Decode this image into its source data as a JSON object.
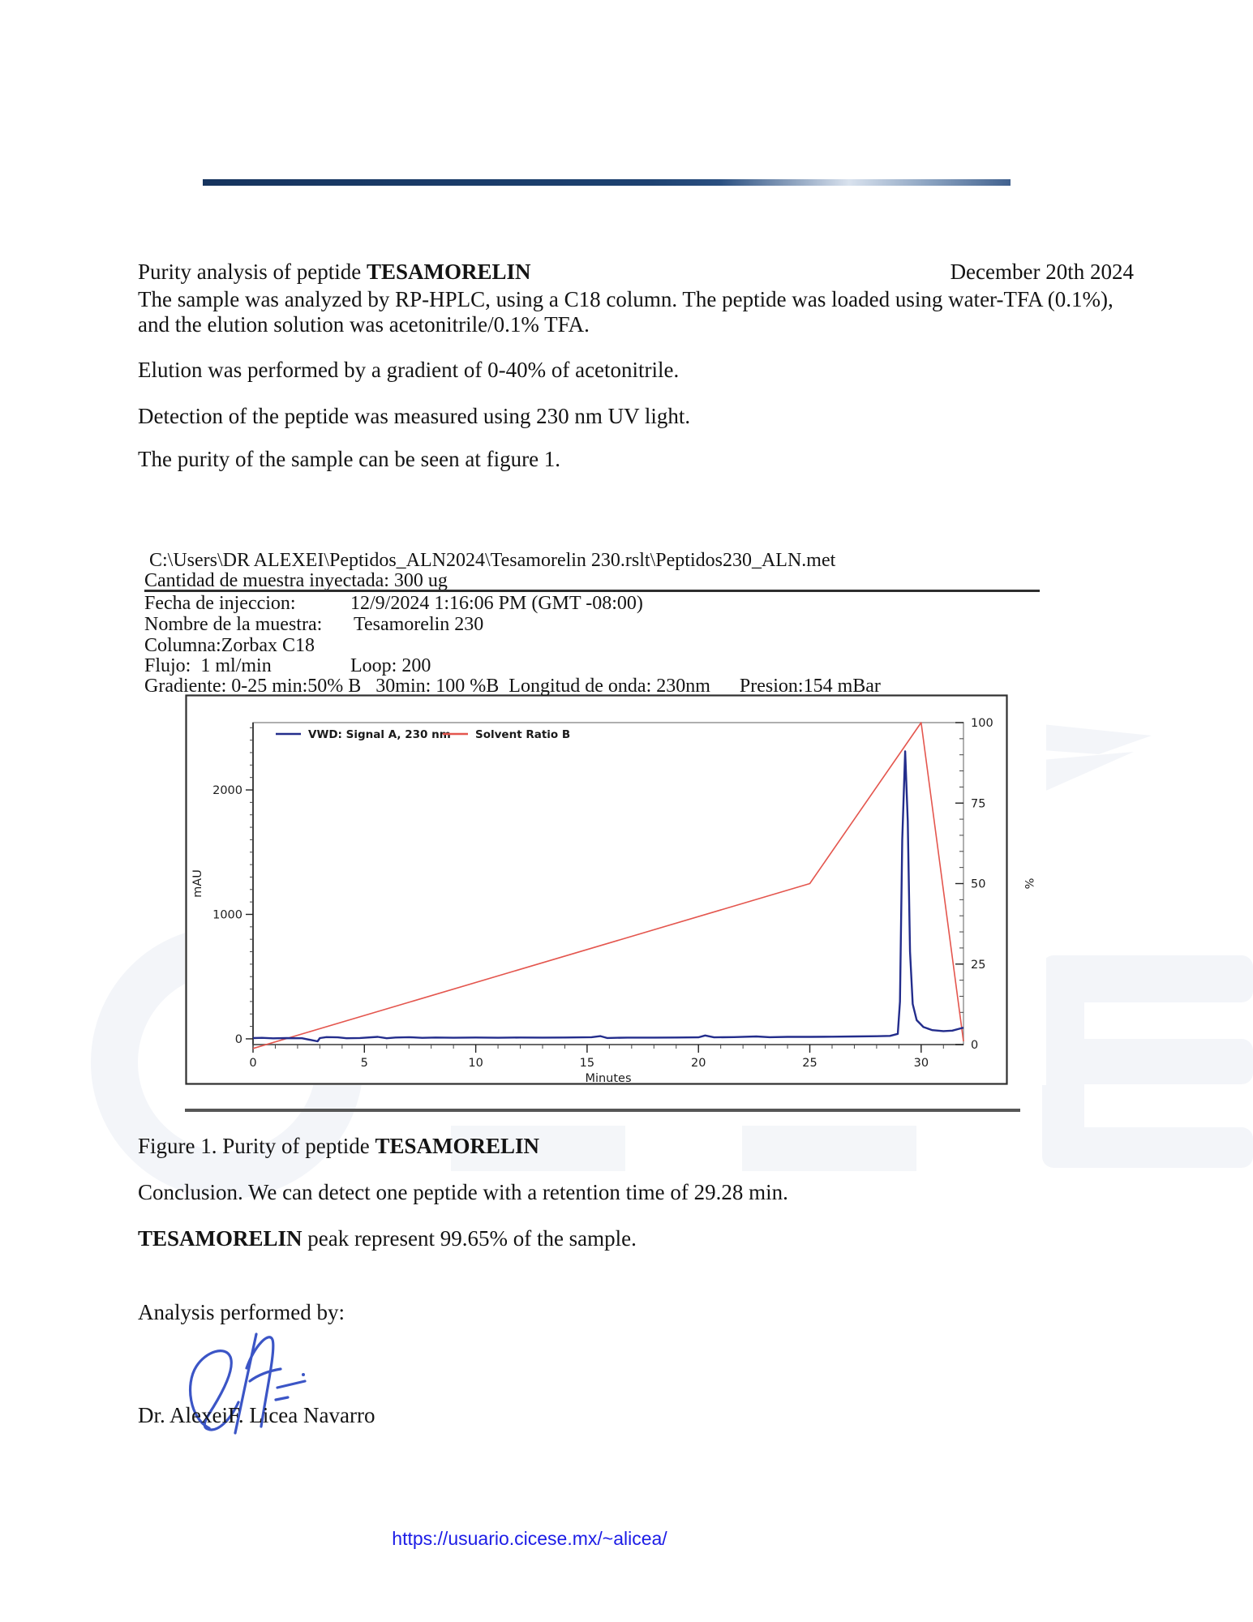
{
  "intro": {
    "title_prefix": "Purity analysis of peptide ",
    "title_peptide": "TESAMORELIN",
    "date": "December 20th 2024",
    "p1a": "The sample was analyzed by RP-HPLC, using a C18 column. The peptide was loaded using water-TFA (0.1%),",
    "p1b": "and the elution solution was acetonitrile/0.1% TFA.",
    "p2": "Elution was performed by a gradient of 0-40% of acetonitrile.",
    "p3": "Detection of the peptide was measured using 230 nm UV light.",
    "p4": "The purity of the sample can be seen at figure 1."
  },
  "meta": {
    "path": "C:\\Users\\DR ALEXEI\\Peptidos_ALN2024\\Tesamorelin 230.rslt\\Peptidos230_ALN.met",
    "cantidad": "Cantidad de muestra inyectada: 300 ug",
    "fecha_label": "Fecha de injeccion:",
    "fecha_value": "12/9/2024 1:16:06 PM (GMT -08:00)",
    "nombre_label": "Nombre de la muestra:",
    "nombre_value": "Tesamorelin 230",
    "columna": "Columna:Zorbax C18",
    "flujo": "Flujo:  1 ml/min",
    "loop": "Loop: 200",
    "gradiente": "Gradiente: 0-25 min:50% B   30min: 100 %B  Longitud de onda: 230nm      Presion:154 mBar"
  },
  "figure": {
    "caption_prefix": "Figure 1. Purity of peptide ",
    "caption_peptide": "TESAMORELIN"
  },
  "conclusion": {
    "line": "Conclusion. We can detect one peptide with a retention time of 29.28 min.",
    "bold": "TESAMORELIN",
    "rest": " peak represent 99.65% of the sample."
  },
  "signoff": {
    "performed_by": "Analysis performed by:",
    "name": "Dr. AlexeiF. Licea Navarro"
  },
  "footer": {
    "link": "https://usuario.cicese.mx/~alicea/"
  },
  "chart_data": {
    "type": "line",
    "title": "",
    "grid": false,
    "legend_position": "top-left-inside",
    "x": {
      "label": "Minutes",
      "min": 0,
      "max": 31.9,
      "major_ticks": [
        0,
        5,
        10,
        15,
        20,
        25,
        30
      ],
      "minor_step": 1
    },
    "y_left": {
      "label": "mAU",
      "min": -46,
      "max": 2541,
      "major_ticks": [
        0,
        1000,
        2000
      ],
      "minor_step": 100
    },
    "y_right": {
      "label": "%",
      "min": 0,
      "max": 100,
      "major_ticks": [
        0,
        25,
        50,
        75,
        100
      ],
      "minor_step": 5
    },
    "series": [
      {
        "name": "VWD: Signal A, 230 nm",
        "color": "#232d8c",
        "axis": "left",
        "points": [
          [
            0,
            6
          ],
          [
            0.4,
            8
          ],
          [
            0.9,
            4
          ],
          [
            1.5,
            6
          ],
          [
            2.2,
            5
          ],
          [
            2.9,
            -20
          ],
          [
            3.0,
            6
          ],
          [
            3.3,
            14
          ],
          [
            3.8,
            12
          ],
          [
            4.2,
            5
          ],
          [
            4.8,
            7
          ],
          [
            5.6,
            16
          ],
          [
            6.0,
            5
          ],
          [
            6.4,
            11
          ],
          [
            7.0,
            13
          ],
          [
            7.6,
            8
          ],
          [
            8.2,
            11
          ],
          [
            9.0,
            9
          ],
          [
            10.0,
            11
          ],
          [
            11.0,
            9
          ],
          [
            12.0,
            11
          ],
          [
            13.0,
            10
          ],
          [
            14.0,
            11
          ],
          [
            15.2,
            13
          ],
          [
            15.6,
            22
          ],
          [
            15.9,
            7
          ],
          [
            16.8,
            10
          ],
          [
            18.0,
            10
          ],
          [
            19.0,
            11
          ],
          [
            20.0,
            12
          ],
          [
            20.3,
            27
          ],
          [
            20.7,
            12
          ],
          [
            21.6,
            14
          ],
          [
            22.6,
            19
          ],
          [
            23.2,
            13
          ],
          [
            24.0,
            16
          ],
          [
            25.0,
            16
          ],
          [
            26.0,
            17
          ],
          [
            27.0,
            19
          ],
          [
            28.0,
            21
          ],
          [
            28.6,
            24
          ],
          [
            28.95,
            40
          ],
          [
            29.05,
            300
          ],
          [
            29.15,
            1600
          ],
          [
            29.28,
            2310
          ],
          [
            29.4,
            1750
          ],
          [
            29.5,
            700
          ],
          [
            29.62,
            280
          ],
          [
            29.8,
            150
          ],
          [
            30.1,
            95
          ],
          [
            30.5,
            70
          ],
          [
            31.0,
            62
          ],
          [
            31.4,
            66
          ],
          [
            31.9,
            90
          ]
        ]
      },
      {
        "name": "Solvent Ratio B",
        "color": "#e4564e",
        "axis": "right",
        "points": [
          [
            0,
            -1.2
          ],
          [
            25,
            50
          ],
          [
            30,
            100
          ],
          [
            31.9,
            1
          ]
        ]
      }
    ],
    "peak": {
      "retention_time_min": 29.28,
      "height_mAU": 2310,
      "area_percent": 99.65
    }
  }
}
